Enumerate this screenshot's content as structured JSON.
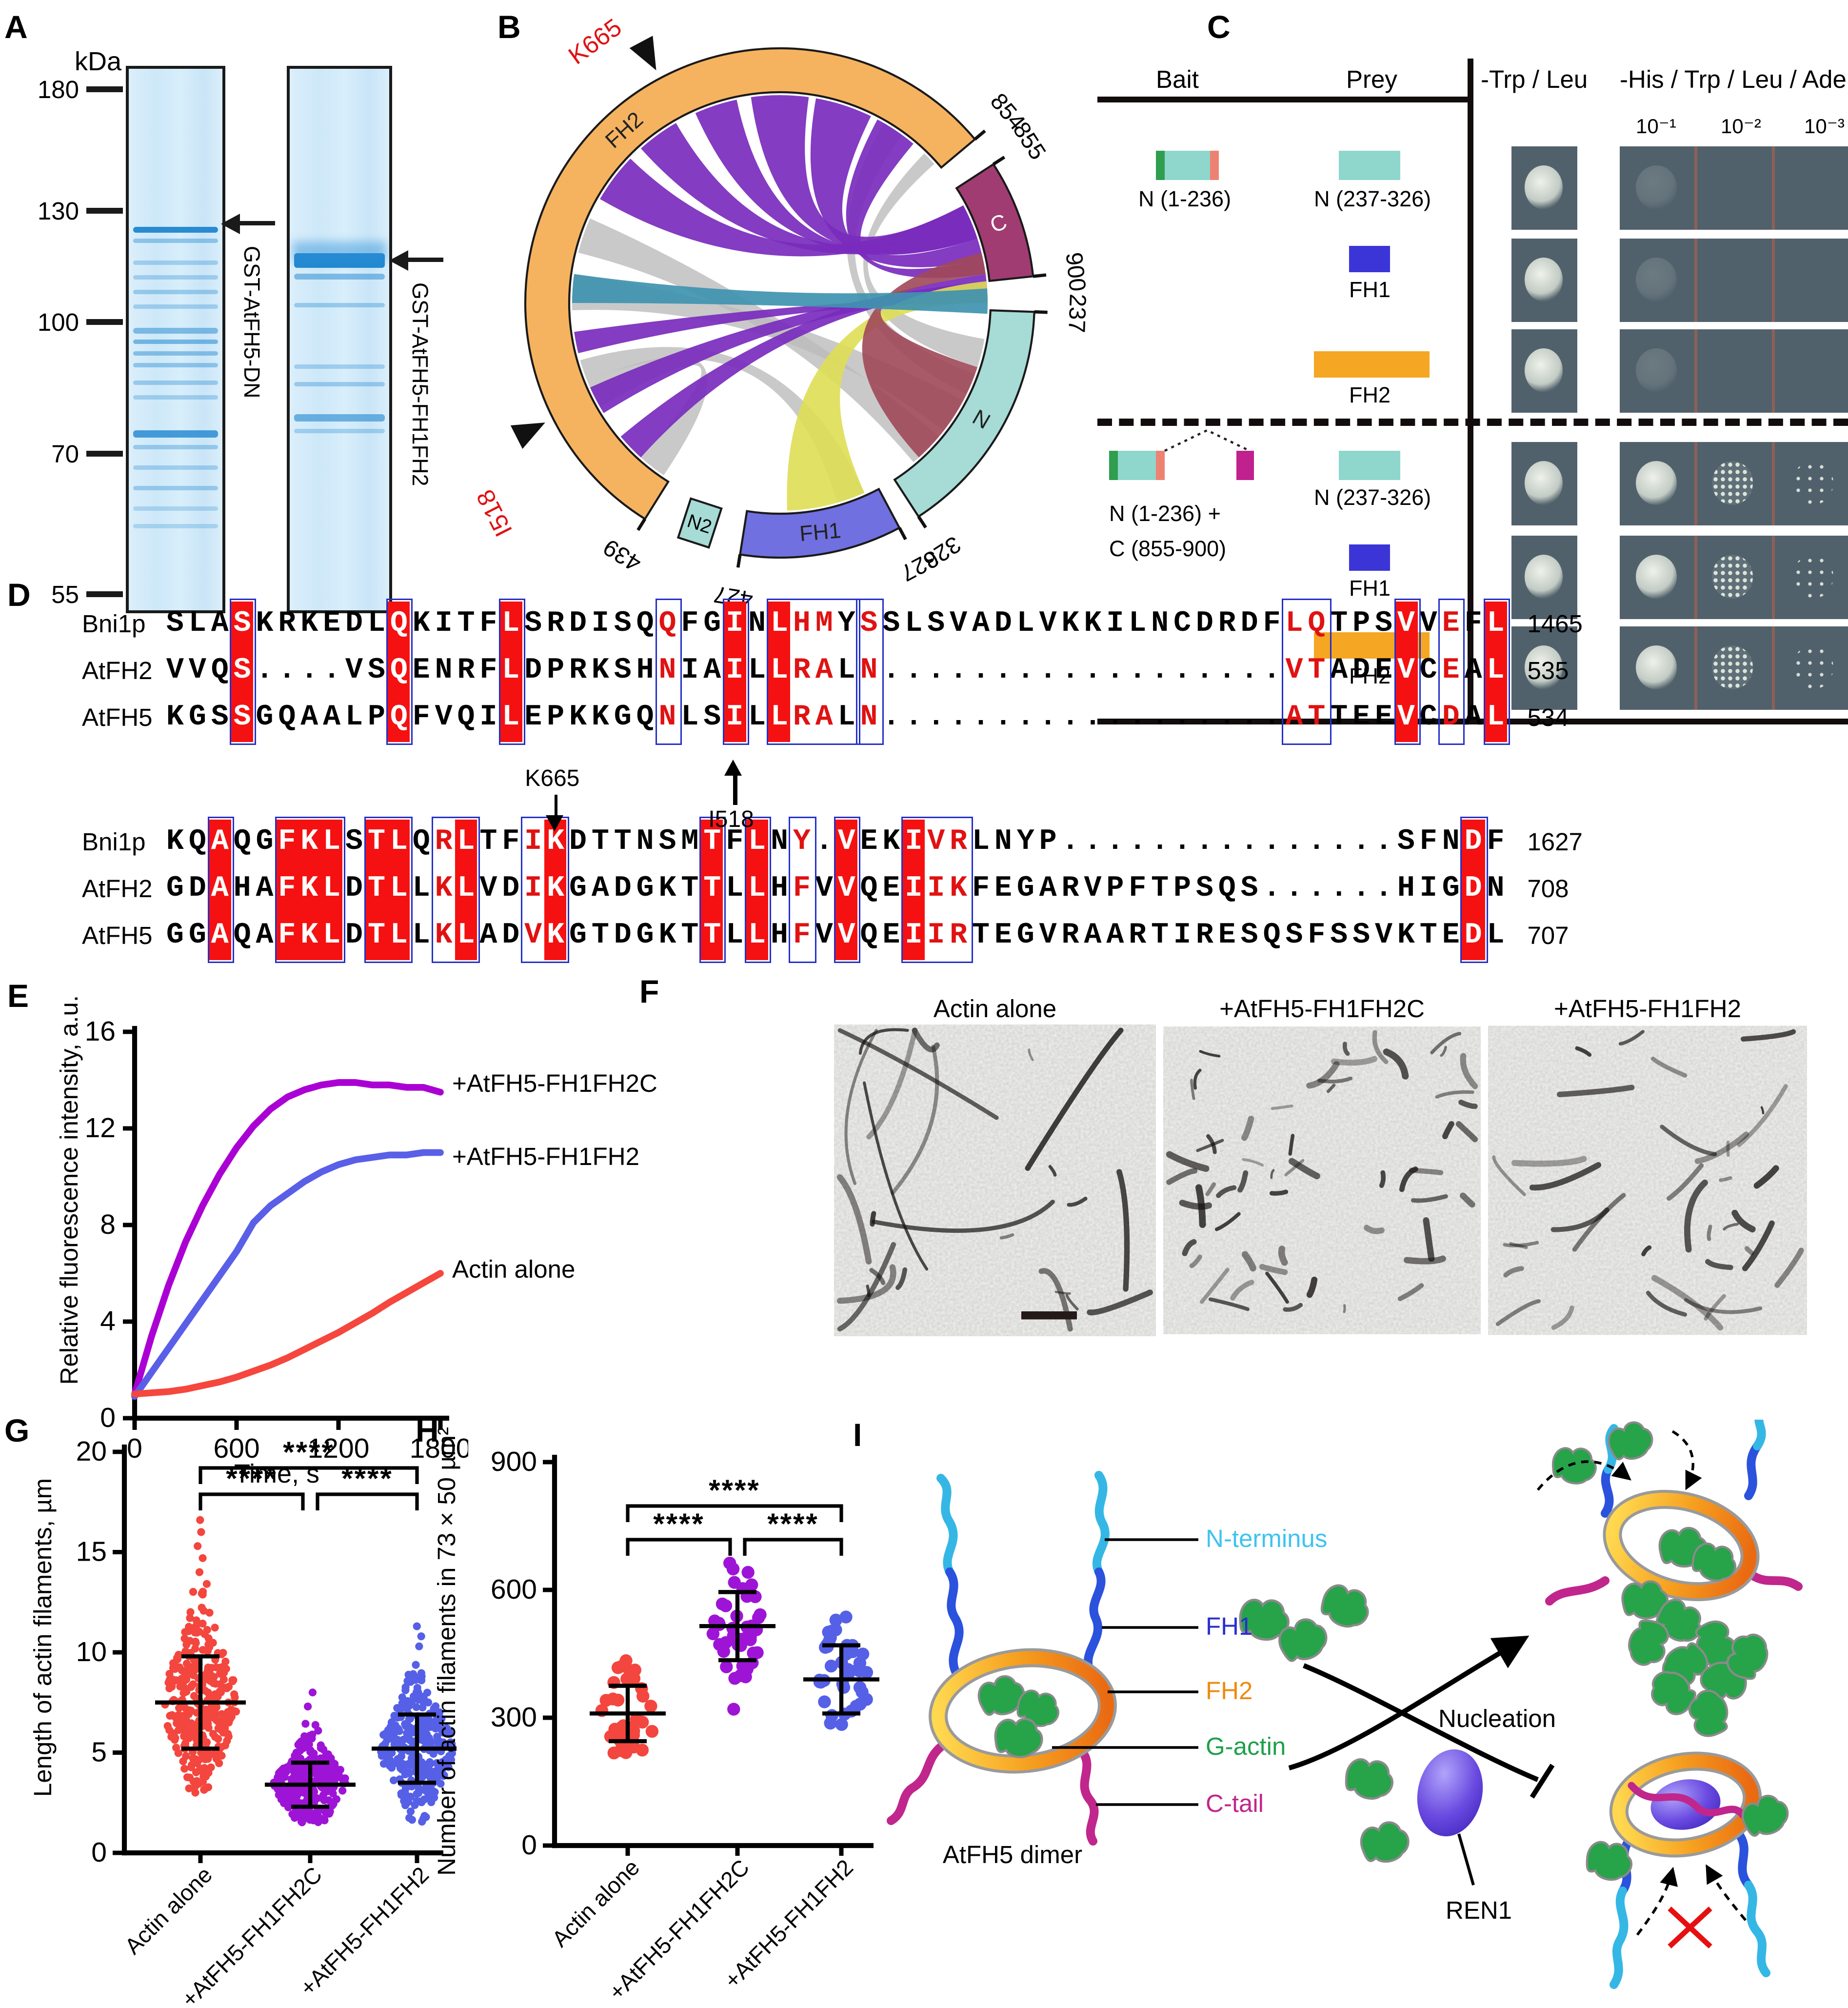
{
  "panels": {
    "a": {
      "label": "A",
      "kda": "kDa",
      "ladder": [
        "180",
        "130",
        "100",
        "70",
        "55"
      ],
      "lane1_label": "GST-AtFH5-DN",
      "lane2_label": "GST-AtFH5-FH1FH2"
    },
    "b": {
      "label": "B",
      "segments": {
        "fh2": "FH2",
        "c": "C",
        "n": "N",
        "fh1": "FH1",
        "n2": "N2"
      },
      "segment_colors": {
        "fh2": "#f5b360",
        "c": "#a13c72",
        "n": "#a6dbd6",
        "fh1": "#7070e0",
        "n2": "#a6dbd6"
      },
      "ticks": [
        "854",
        "855",
        "900",
        "237",
        "326",
        "327",
        "427",
        "439"
      ],
      "residue_k665": "K665",
      "residue_i518": "I518"
    },
    "c": {
      "label": "C",
      "col_bait": "Bait",
      "col_prey": "Prey",
      "col_tl": "-Trp / Leu",
      "col_his": "-His / Trp / Leu / Ade",
      "dilutions": [
        "10⁻¹",
        "10⁻²",
        "10⁻³"
      ],
      "top_bait": "N (1-236)",
      "bottom_bait_line1": "N (1-236) +",
      "bottom_bait_line2": "C (855-900)",
      "prey_labels": [
        "N (237-326)",
        "FH1",
        "FH2"
      ],
      "growth": {
        "top": [
          [
            "solid",
            "faint",
            "none",
            "none"
          ],
          [
            "solid",
            "faint",
            "none",
            "none"
          ],
          [
            "solid",
            "faint",
            "none",
            "none"
          ]
        ],
        "bottom": [
          [
            "solid",
            "solid",
            "speckle",
            "sparse"
          ],
          [
            "solid",
            "solid",
            "speckle",
            "sparse"
          ],
          [
            "solid",
            "solid",
            "speckle",
            "sparse"
          ]
        ]
      }
    },
    "d": {
      "label": "D",
      "block1": {
        "names": [
          "Bni1p",
          "AtFH2",
          "AtFH5"
        ],
        "seqs": [
          "SLASKRKEDLQKITFLSRDISQQFGINLHMYSSLSVADLVKKILNCDRDFLQTPSVVEFL",
          "VVQS....VSQENRFLDPRKSHNIAILLRALN..................VTADEVCEAL",
          "KGSSGQAALPQFVQILEPKKGQNLSILLRALN..................ATTEEVCDAL"
        ],
        "nums": [
          "1465",
          "535",
          "534"
        ],
        "bg_cols": [
          4,
          11,
          16,
          26,
          28,
          56,
          60
        ],
        "red_cols": [
          23,
          29,
          30,
          32,
          51,
          52,
          58
        ],
        "boxes": [
          [
            4,
            4
          ],
          [
            11,
            11
          ],
          [
            16,
            16
          ],
          [
            23,
            23
          ],
          [
            26,
            26
          ],
          [
            28,
            31
          ],
          [
            32,
            32
          ],
          [
            51,
            52
          ],
          [
            56,
            56
          ],
          [
            58,
            58
          ],
          [
            60,
            60
          ]
        ]
      },
      "block2": {
        "names": [
          "Bni1p",
          "AtFH2",
          "AtFH5"
        ],
        "seqs": [
          "KQAQGFKLSTLQRLTFIKDTTNSMTFLNY.VEKIVRLNYP...............SFNDF",
          "GDAHAFKLDTLLKLVDIKGADGKTTLLHFVVQEIIKFEGARVPFTPSQS......HIGDN",
          "GGAQAFKLDTLLKLADVKGTDGKTTLLHFVVQEIIRTEGVRAARTIRESQSFSSVKTEDL"
        ],
        "nums": [
          "1627",
          "708",
          "707"
        ],
        "bg_cols": [
          3,
          6,
          7,
          8,
          10,
          11,
          14,
          18,
          25,
          27,
          31,
          34,
          59
        ],
        "red_cols": [
          13,
          17,
          29,
          35,
          36
        ],
        "boxes": [
          [
            3,
            3
          ],
          [
            6,
            8
          ],
          [
            10,
            11
          ],
          [
            13,
            14
          ],
          [
            17,
            18
          ],
          [
            25,
            25
          ],
          [
            27,
            27
          ],
          [
            29,
            29
          ],
          [
            31,
            31
          ],
          [
            34,
            36
          ],
          [
            59,
            59
          ]
        ]
      },
      "anno_i518": "I518",
      "anno_k665": "K665",
      "i518_col": 26,
      "k665_col": 18
    },
    "e": {
      "label": "E",
      "chart_data": {
        "type": "line",
        "xlabel": "Time, s",
        "ylabel": "Relative fluorescence intensity, a.u.",
        "xticks": [
          0,
          600,
          1200,
          1800
        ],
        "yticks": [
          0,
          4,
          8,
          12,
          16
        ],
        "xlim": [
          0,
          1800
        ],
        "ylim": [
          0,
          16
        ],
        "x": [
          0,
          100,
          200,
          300,
          400,
          500,
          600,
          700,
          800,
          900,
          1000,
          1100,
          1200,
          1300,
          1400,
          1500,
          1600,
          1700,
          1800
        ],
        "series": [
          {
            "name": "+AtFH5-FH1FH2C",
            "color": "#ab00d4",
            "values": [
              1.0,
              3.4,
              5.5,
              7.3,
              8.8,
              10.1,
              11.2,
              12.1,
              12.8,
              13.3,
              13.6,
              13.8,
              13.9,
              13.9,
              13.8,
              13.8,
              13.7,
              13.7,
              13.5
            ]
          },
          {
            "name": "+AtFH5-FH1FH2",
            "color": "#5a5fe8",
            "values": [
              0.9,
              1.9,
              2.9,
              3.9,
              4.9,
              5.9,
              6.9,
              8.1,
              8.8,
              9.3,
              9.8,
              10.2,
              10.5,
              10.7,
              10.8,
              10.9,
              10.9,
              11.0,
              11.0
            ]
          },
          {
            "name": "Actin alone",
            "color": "#f5473d",
            "values": [
              1.0,
              1.05,
              1.1,
              1.2,
              1.35,
              1.5,
              1.7,
              1.95,
              2.2,
              2.5,
              2.85,
              3.2,
              3.55,
              3.95,
              4.35,
              4.8,
              5.2,
              5.6,
              6.0
            ]
          }
        ]
      }
    },
    "f": {
      "label": "F",
      "titles": [
        "Actin alone",
        "+AtFH5-FH1FH2C",
        "+AtFH5-FH1FH2"
      ]
    },
    "g": {
      "label": "G",
      "chart_data": {
        "type": "scatter",
        "ylabel": "Length of actin filaments, µm",
        "yticks": [
          0,
          5,
          10,
          15,
          20
        ],
        "ylim": [
          0,
          20
        ],
        "categories": [
          "Actin alone",
          "+AtFH5-FH1FH2C",
          "+AtFH5-FH1FH2"
        ],
        "colors": [
          "#f3463e",
          "#9e14d6",
          "#5560e6"
        ],
        "stats": [
          {
            "mean": 7.5,
            "sd": 2.3,
            "min": 3.0,
            "max": 13.5,
            "n": 330,
            "outliers": [
              14.0,
              14.7,
              15.3,
              16.0,
              16.6
            ]
          },
          {
            "mean": 3.4,
            "sd": 1.1,
            "min": 1.5,
            "max": 6.8,
            "n": 300,
            "outliers": [
              7.3,
              8.0
            ]
          },
          {
            "mean": 5.2,
            "sd": 1.7,
            "min": 1.5,
            "max": 9.8,
            "n": 310,
            "outliers": [
              10.3,
              10.8,
              11.3
            ]
          }
        ],
        "significance": [
          {
            "a": 0,
            "b": 1,
            "label": "****"
          },
          {
            "a": 1,
            "b": 2,
            "label": "****"
          },
          {
            "a": 0,
            "b": 2,
            "label": "****"
          }
        ]
      }
    },
    "h": {
      "label": "H",
      "chart_data": {
        "type": "scatter",
        "ylabel": "Number of actin filaments in 73×50 µm²",
        "yticks": [
          0,
          300,
          600,
          900
        ],
        "ylim": [
          0,
          900
        ],
        "categories": [
          "Actin alone",
          "+AtFH5-FH1FH2C",
          "+AtFH5-FH1FH2"
        ],
        "colors": [
          "#f3463e",
          "#9e14d6",
          "#5560e6"
        ],
        "stats": [
          {
            "mean": 310,
            "sd": 65,
            "min": 210,
            "max": 440,
            "n": 40,
            "outliers": []
          },
          {
            "mean": 515,
            "sd": 80,
            "min": 390,
            "max": 680,
            "n": 42,
            "outliers": [
              320
            ]
          },
          {
            "mean": 390,
            "sd": 80,
            "min": 270,
            "max": 560,
            "n": 40,
            "outliers": []
          }
        ],
        "significance": [
          {
            "a": 0,
            "b": 1,
            "label": "****"
          },
          {
            "a": 1,
            "b": 2,
            "label": "****"
          },
          {
            "a": 0,
            "b": 2,
            "label": "****"
          }
        ]
      }
    },
    "i": {
      "label": "I",
      "lbl_n_terminus": "N-terminus",
      "lbl_fh1": "FH1",
      "lbl_fh2": "FH2",
      "lbl_g_actin": "G-actin",
      "lbl_c_tail": "C-tail",
      "caption_dimer": "AtFH5 dimer",
      "lbl_nucleation": "Nucleation",
      "lbl_ren1": "REN1",
      "label_colors": {
        "n_terminus": "#3fc3ee",
        "fh1": "#2a2ed0",
        "fh2": "#ef8a10",
        "g_actin": "#1ea04a",
        "c_tail": "#c0268c"
      }
    }
  }
}
